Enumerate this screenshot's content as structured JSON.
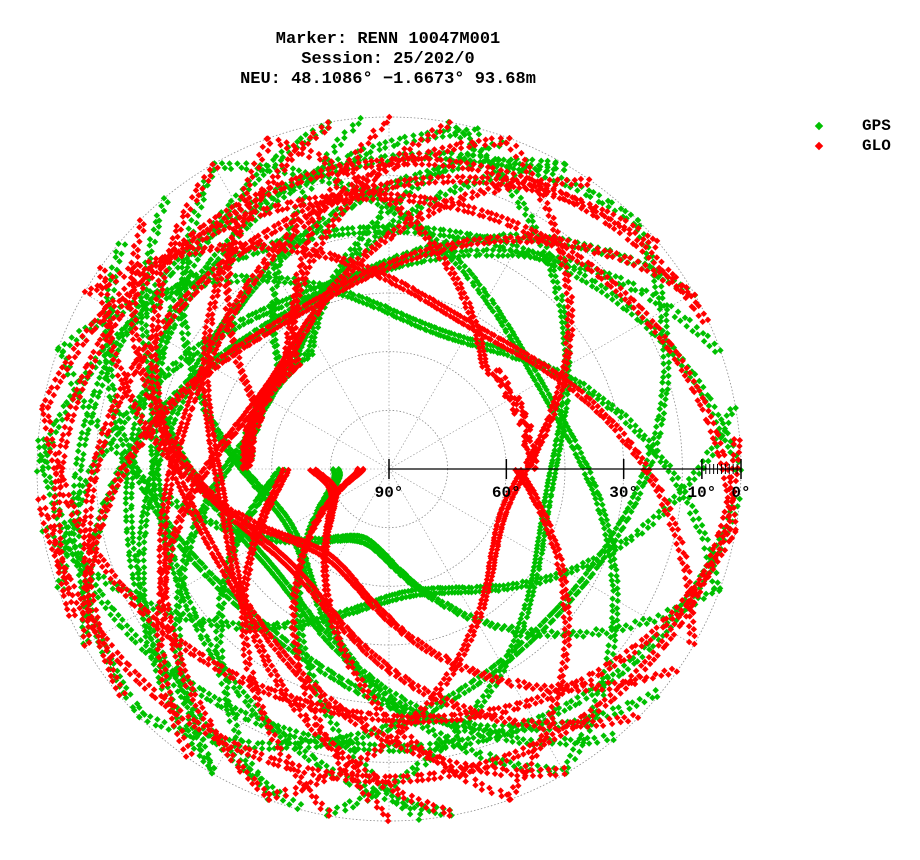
{
  "header": {
    "line1": "Marker: RENN 10047M001",
    "line2": "Session: 25/202/0",
    "line3": "NEU: 48.1086° −1.6673° 93.68m"
  },
  "colors": {
    "GPS": "#00c000",
    "GLO": "#ff0000",
    "grid": "#888888",
    "axis": "#000000"
  },
  "chart_data": {
    "type": "scatter",
    "projection": "polar skyplot (azimuth clockwise from north, elevation radial 90° at center to 0° at rim)",
    "title": "",
    "xlabel": "",
    "ylabel": "",
    "elevation_tick_labels": [
      "90°",
      "60°",
      "30°",
      "10°",
      "0°"
    ],
    "elevation_ticks": [
      90,
      60,
      30,
      10,
      0
    ],
    "grid": true,
    "legend_position": "top-right",
    "legend": [
      "GPS",
      "GLO"
    ],
    "north_gap_elevation_deg": 55,
    "series": [
      {
        "name": "GPS",
        "marker": "diamond",
        "tracks": [
          {
            "az_start": -70,
            "az_end": 110,
            "max_elev": 52
          },
          {
            "az_start": -30,
            "az_end": 150,
            "max_elev": 45
          },
          {
            "az_start": -110,
            "az_end": 70,
            "max_elev": 40
          },
          {
            "az_start": -150,
            "az_end": 30,
            "max_elev": 34
          },
          {
            "az_start": 10,
            "az_end": 190,
            "max_elev": 48
          },
          {
            "az_start": 170,
            "az_end": 350,
            "max_elev": 30
          },
          {
            "az_start": 195,
            "az_end": 375,
            "max_elev": 24
          },
          {
            "az_start": 130,
            "az_end": 310,
            "max_elev": 38
          },
          {
            "az_start": 150,
            "az_end": 330,
            "max_elev": 60
          },
          {
            "az_start": 200,
            "az_end": 380,
            "max_elev": 66
          },
          {
            "az_start": 110,
            "az_end": 290,
            "max_elev": 70
          },
          {
            "az_start": 225,
            "az_end": 405,
            "max_elev": 14
          },
          {
            "az_start": 95,
            "az_end": 275,
            "max_elev": 18
          },
          {
            "az_start": -90,
            "az_end": 90,
            "max_elev": 28
          },
          {
            "az_start": 45,
            "az_end": 225,
            "max_elev": 33
          },
          {
            "az_start": 240,
            "az_end": 420,
            "max_elev": 42
          },
          {
            "az_start": 80,
            "az_end": 260,
            "max_elev": 57
          },
          {
            "az_start": 175,
            "az_end": 355,
            "max_elev": 76
          },
          {
            "az_start": 140,
            "az_end": 320,
            "max_elev": 50
          },
          {
            "az_start": 210,
            "az_end": 390,
            "max_elev": 55
          }
        ]
      },
      {
        "name": "GLO",
        "marker": "diamond",
        "tracks": [
          {
            "az_start": -60,
            "az_end": 120,
            "max_elev": 47
          },
          {
            "az_start": -120,
            "az_end": 60,
            "max_elev": 43
          },
          {
            "az_start": 160,
            "az_end": 340,
            "max_elev": 74
          },
          {
            "az_start": 190,
            "az_end": 370,
            "max_elev": 64
          },
          {
            "az_start": 125,
            "az_end": 305,
            "max_elev": 62
          },
          {
            "az_start": 200,
            "az_end": 380,
            "max_elev": 36
          },
          {
            "az_start": 150,
            "az_end": 330,
            "max_elev": 40
          },
          {
            "az_start": 230,
            "az_end": 410,
            "max_elev": 22
          },
          {
            "az_start": 100,
            "az_end": 280,
            "max_elev": 26
          },
          {
            "az_start": 215,
            "az_end": 395,
            "max_elev": 52
          },
          {
            "az_start": 135,
            "az_end": 315,
            "max_elev": 54
          },
          {
            "az_start": -80,
            "az_end": 100,
            "max_elev": 20
          },
          {
            "az_start": 20,
            "az_end": 200,
            "max_elev": 58
          },
          {
            "az_start": -20,
            "az_end": 160,
            "max_elev": 60
          },
          {
            "az_start": 180,
            "az_end": 360,
            "max_elev": 82
          },
          {
            "az_start": 245,
            "az_end": 425,
            "max_elev": 12
          },
          {
            "az_start": 85,
            "az_end": 265,
            "max_elev": 10
          },
          {
            "az_start": 170,
            "az_end": 350,
            "max_elev": 46
          }
        ]
      }
    ]
  }
}
